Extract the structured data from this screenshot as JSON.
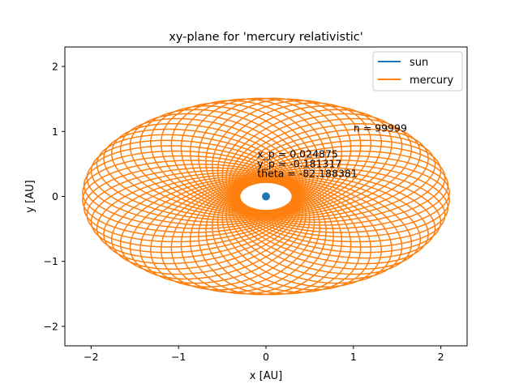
{
  "chart_data": {
    "type": "line",
    "title": "xy-plane for 'mercury relativistic'",
    "xlabel": "x [AU]",
    "ylabel": "y [AU]",
    "xlim": [
      -2.3,
      2.3
    ],
    "ylim": [
      -2.3,
      2.3
    ],
    "xticks": [
      -2,
      -1,
      0,
      1,
      2
    ],
    "yticks": [
      -2,
      -1,
      0,
      1,
      2
    ],
    "xtick_labels": [
      "−2",
      "−1",
      "0",
      "1",
      "2"
    ],
    "ytick_labels": [
      "−2",
      "−1",
      "0",
      "1",
      "2"
    ],
    "grid": false,
    "legend_position": "top-right",
    "series": [
      {
        "name": "sun",
        "color": "#1f77b4",
        "marker": "circle",
        "points": [
          [
            0,
            0
          ]
        ]
      },
      {
        "name": "mercury",
        "color": "#ff7f0e",
        "orbit": {
          "semi_major_axis": 1.2,
          "eccentricity": 0.75,
          "center": [
            0,
            0
          ],
          "y_scale": 0.72,
          "precession_total_deg": 360,
          "loops": 60
        }
      }
    ],
    "annotations": [
      {
        "text": "n = 99999",
        "x": 1.0,
        "y": 1.0
      },
      {
        "text": "x_p = 0.024875",
        "x": -0.1,
        "y": 0.6
      },
      {
        "text": "y_p = -0.181317",
        "x": -0.1,
        "y": 0.45
      },
      {
        "text": "theta = -82.188381",
        "x": -0.1,
        "y": 0.3
      }
    ]
  }
}
